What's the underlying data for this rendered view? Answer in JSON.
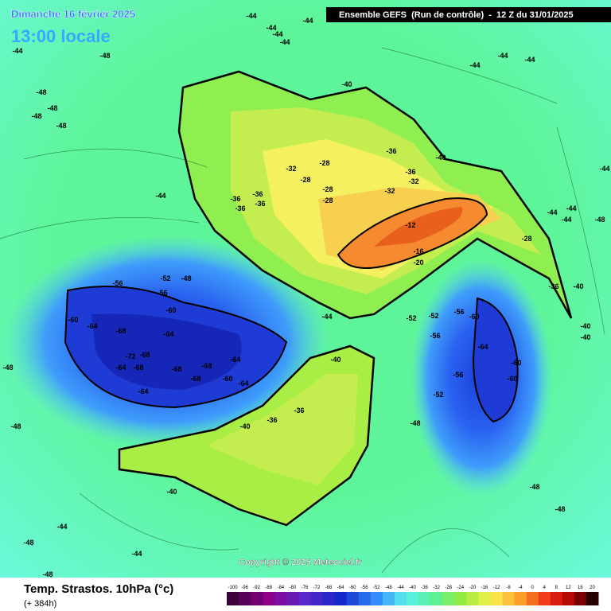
{
  "header": {
    "date": "Dimanche 16 février 2025",
    "local_time": "13:00 locale",
    "run": "Ensemble GEFS  (Run de contrôle)  -  12 Z du 31/01/2025"
  },
  "footer": {
    "title": "Temp. Strastos. 10hPa (°c)",
    "lead": "(+ 384h)",
    "copyright": "Copyright © 2025 Meteociel.fr"
  },
  "scale": {
    "ticks": [
      -100,
      -96,
      -92,
      -88,
      -84,
      -80,
      -76,
      -72,
      -68,
      -64,
      -60,
      -56,
      -52,
      -48,
      -44,
      -40,
      -36,
      -32,
      -28,
      -24,
      -20,
      -16,
      -12,
      -8,
      -4,
      0,
      4,
      8,
      12,
      16,
      20
    ]
  },
  "labels": [
    "-44",
    "-44",
    "-44",
    "-44",
    "-44",
    "-44",
    "-48",
    "-44",
    "-44",
    "-44",
    "-40",
    "-48",
    "-48",
    "-48",
    "-48",
    "-36",
    "-40",
    "-28",
    "-32",
    "-28",
    "-36",
    "-32",
    "-44",
    "-36",
    "-36",
    "-36",
    "-36",
    "-28",
    "-32",
    "-28",
    "-44",
    "-12",
    "-44",
    "-44",
    "-44",
    "-48",
    "-28",
    "-16",
    "-20",
    "-52",
    "-48",
    "-56",
    "-56",
    "-36",
    "-40",
    "-60",
    "-60",
    "-64",
    "-68",
    "-64",
    "-44",
    "-52",
    "-52",
    "-56",
    "-60",
    "-72",
    "-68",
    "-64",
    "-68",
    "-68",
    "-64",
    "-68",
    "-68",
    "-64",
    "-64",
    "-60",
    "-40",
    "-56",
    "-64",
    "-60",
    "-60",
    "-56",
    "-52",
    "-48",
    "-36",
    "-36",
    "-40",
    "-40",
    "-44",
    "-48",
    "-44",
    "-48",
    "-48",
    "-48",
    "-40",
    "-40",
    "-48",
    "-48"
  ]
}
